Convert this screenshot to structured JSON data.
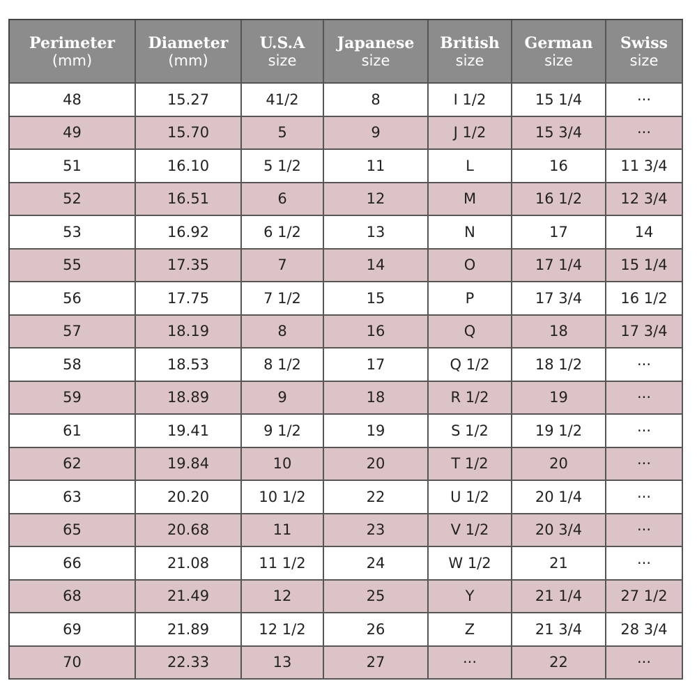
{
  "table": {
    "header": [
      {
        "title": "Perimeter",
        "sub": "(mm)"
      },
      {
        "title": "Diameter",
        "sub": "(mm)"
      },
      {
        "title": "U.S.A",
        "sub": "size"
      },
      {
        "title": "Japanese",
        "sub": "size"
      },
      {
        "title": "British",
        "sub": "size"
      },
      {
        "title": "German",
        "sub": "size"
      },
      {
        "title": "Swiss",
        "sub": "size"
      }
    ],
    "rows": [
      [
        "48",
        "15.27",
        "41/2",
        "8",
        "I 1/2",
        "15 1/4",
        "···"
      ],
      [
        "49",
        "15.70",
        "5",
        "9",
        "J 1/2",
        "15 3/4",
        "···"
      ],
      [
        "51",
        "16.10",
        "5 1/2",
        "11",
        "L",
        "16",
        "11 3/4"
      ],
      [
        "52",
        "16.51",
        "6",
        "12",
        "M",
        "16 1/2",
        "12 3/4"
      ],
      [
        "53",
        "16.92",
        "6 1/2",
        "13",
        "N",
        "17",
        "14"
      ],
      [
        "55",
        "17.35",
        "7",
        "14",
        "O",
        "17 1/4",
        "15 1/4"
      ],
      [
        "56",
        "17.75",
        "7 1/2",
        "15",
        "P",
        "17 3/4",
        "16 1/2"
      ],
      [
        "57",
        "18.19",
        "8",
        "16",
        "Q",
        "18",
        "17 3/4"
      ],
      [
        "58",
        "18.53",
        "8 1/2",
        "17",
        "Q 1/2",
        "18 1/2",
        "···"
      ],
      [
        "59",
        "18.89",
        "9",
        "18",
        "R 1/2",
        "19",
        "···"
      ],
      [
        "61",
        "19.41",
        "9 1/2",
        "19",
        "S 1/2",
        "19 1/2",
        "···"
      ],
      [
        "62",
        "19.84",
        "10",
        "20",
        "T 1/2",
        "20",
        "···"
      ],
      [
        "63",
        "20.20",
        "10 1/2",
        "22",
        "U 1/2",
        "20 1/4",
        "···"
      ],
      [
        "65",
        "20.68",
        "11",
        "23",
        "V 1/2",
        "20 3/4",
        "···"
      ],
      [
        "66",
        "21.08",
        "11 1/2",
        "24",
        "W 1/2",
        "21",
        "···"
      ],
      [
        "68",
        "21.49",
        "12",
        "25",
        "Y",
        "21 1/4",
        "27 1/2"
      ],
      [
        "69",
        "21.89",
        "12 1/2",
        "26",
        "Z",
        "21 3/4",
        "28 3/4"
      ],
      [
        "70",
        "22.33",
        "13",
        "27",
        "···",
        "22",
        "···"
      ]
    ]
  }
}
